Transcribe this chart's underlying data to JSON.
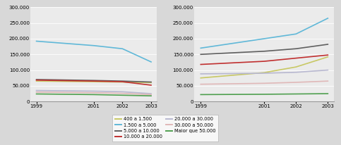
{
  "years": [
    1999,
    2001,
    2002,
    2003
  ],
  "left": {
    "ylim": [
      0,
      300000
    ],
    "yticks": [
      0,
      50000,
      100000,
      150000,
      200000,
      250000,
      300000
    ],
    "series": [
      {
        "name": "400 a 1.500",
        "color": "#c8c864",
        "values": [
          65000,
          63000,
          62000,
          60000
        ]
      },
      {
        "name": "1.500 a 5.000",
        "color": "#60b8d8",
        "values": [
          192000,
          178000,
          168000,
          126000
        ]
      },
      {
        "name": "5.000 a 10.000",
        "color": "#606060",
        "values": [
          70000,
          67000,
          65000,
          62000
        ]
      },
      {
        "name": "10.000 a 20.000",
        "color": "#c03030",
        "values": [
          68000,
          65000,
          63000,
          52000
        ]
      },
      {
        "name": "20.000 a 30.000",
        "color": "#b8b8d0",
        "values": [
          35000,
          33000,
          31000,
          25000
        ]
      },
      {
        "name": "30.000 a 50.000",
        "color": "#e0b8b8",
        "values": [
          30000,
          28000,
          26000,
          22000
        ]
      },
      {
        "name": "Maior que 50.000",
        "color": "#50a050",
        "values": [
          24000,
          22000,
          20000,
          18000
        ]
      }
    ]
  },
  "right": {
    "ylim": [
      0,
      300000
    ],
    "yticks": [
      0,
      50000,
      100000,
      150000,
      200000,
      250000,
      300000
    ],
    "series": [
      {
        "name": "400 a 1.500",
        "color": "#c8c864",
        "values": [
          75000,
          92000,
          110000,
          142000
        ]
      },
      {
        "name": "1.500 a 5.000",
        "color": "#60b8d8",
        "values": [
          170000,
          200000,
          215000,
          265000
        ]
      },
      {
        "name": "5.000 a 10.000",
        "color": "#606060",
        "values": [
          150000,
          160000,
          168000,
          182000
        ]
      },
      {
        "name": "10.000 a 20.000",
        "color": "#c03030",
        "values": [
          118000,
          128000,
          138000,
          148000
        ]
      },
      {
        "name": "20.000 a 30.000",
        "color": "#b8b8d0",
        "values": [
          88000,
          90000,
          93000,
          100000
        ]
      },
      {
        "name": "30.000 a 50.000",
        "color": "#e0b8b8",
        "values": [
          55000,
          58000,
          61000,
          65000
        ]
      },
      {
        "name": "Maior que 50.000",
        "color": "#50a050",
        "values": [
          22000,
          23000,
          24000,
          25000
        ]
      }
    ]
  },
  "legend_col1": [
    "400 a 1.500",
    "1.500 a 5.000",
    "5.000 a 10.000",
    "10.000 a 20.000"
  ],
  "legend_col2": [
    "20.000 a 30.000",
    "30.000 a 50.000",
    "Maior que 50.000"
  ],
  "legend_colors": {
    "400 a 1.500": "#c8c864",
    "1.500 a 5.000": "#60b8d8",
    "5.000 a 10.000": "#606060",
    "10.000 a 20.000": "#c03030",
    "20.000 a 30.000": "#b8b8d0",
    "30.000 a 50.000": "#e0b8b8",
    "Maior que 50.000": "#50a050"
  },
  "bg_color": "#d8d8d8",
  "plot_bg_color": "#ebebeb",
  "grid_color": "#ffffff",
  "tick_fontsize": 5,
  "legend_fontsize": 4.8,
  "linewidth": 1.2
}
